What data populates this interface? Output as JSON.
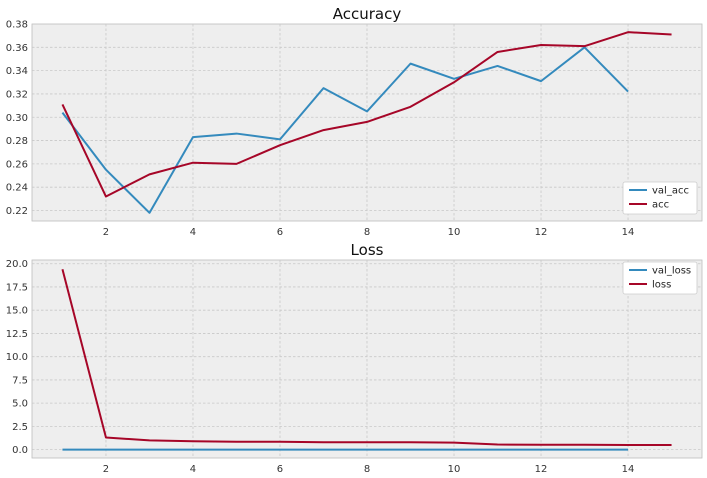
{
  "chart_data": [
    {
      "type": "line",
      "title": "Accuracy",
      "xlabel": "",
      "ylabel": "",
      "xlim": [
        0.3,
        15.7
      ],
      "ylim": [
        0.211,
        0.38
      ],
      "xticks": [
        2,
        4,
        6,
        8,
        10,
        12,
        14
      ],
      "xtick_labels": [
        "2",
        "4",
        "6",
        "8",
        "10",
        "12",
        "14"
      ],
      "yticks": [
        0.22,
        0.24,
        0.26,
        0.28,
        0.3,
        0.32,
        0.34,
        0.36,
        0.38
      ],
      "ytick_labels": [
        "0.22",
        "0.24",
        "0.26",
        "0.28",
        "0.30",
        "0.32",
        "0.34",
        "0.36",
        "0.38"
      ],
      "grid": true,
      "legend_position": "lower-right",
      "series": [
        {
          "name": "val_acc",
          "color": "#348ABD",
          "x": [
            1,
            2,
            3,
            4,
            5,
            6,
            7,
            8,
            9,
            10,
            11,
            12,
            13,
            14
          ],
          "values": [
            0.304,
            0.255,
            0.218,
            0.283,
            0.286,
            0.281,
            0.325,
            0.305,
            0.346,
            0.333,
            0.344,
            0.331,
            0.36,
            0.322
          ]
        },
        {
          "name": "acc",
          "color": "#A60628",
          "x": [
            1,
            2,
            3,
            4,
            5,
            6,
            7,
            8,
            9,
            10,
            11,
            12,
            13,
            14,
            15
          ],
          "values": [
            0.311,
            0.232,
            0.251,
            0.261,
            0.26,
            0.276,
            0.289,
            0.296,
            0.309,
            0.33,
            0.356,
            0.362,
            0.361,
            0.373,
            0.371
          ]
        }
      ]
    },
    {
      "type": "line",
      "title": "Loss",
      "xlabel": "",
      "ylabel": "",
      "xlim": [
        0.3,
        15.7
      ],
      "ylim": [
        -0.9,
        20.4
      ],
      "xticks": [
        2,
        4,
        6,
        8,
        10,
        12,
        14
      ],
      "xtick_labels": [
        "2",
        "4",
        "6",
        "8",
        "10",
        "12",
        "14"
      ],
      "yticks": [
        0.0,
        2.5,
        5.0,
        7.5,
        10.0,
        12.5,
        15.0,
        17.5,
        20.0
      ],
      "ytick_labels": [
        "0.0",
        "2.5",
        "5.0",
        "7.5",
        "10.0",
        "12.5",
        "15.0",
        "17.5",
        "20.0"
      ],
      "grid": true,
      "legend_position": "upper-right",
      "series": [
        {
          "name": "val_loss",
          "color": "#348ABD",
          "x": [
            1,
            2,
            3,
            4,
            5,
            6,
            7,
            8,
            9,
            10,
            11,
            12,
            13,
            14
          ],
          "values": [
            0.0,
            0.0,
            0.0,
            0.0,
            0.0,
            0.0,
            0.0,
            0.0,
            0.0,
            0.0,
            0.0,
            0.0,
            0.0,
            0.0
          ]
        },
        {
          "name": "loss",
          "color": "#A60628",
          "x": [
            1,
            2,
            3,
            4,
            5,
            6,
            7,
            8,
            9,
            10,
            11,
            12,
            13,
            14,
            15
          ],
          "values": [
            19.4,
            1.3,
            1.0,
            0.9,
            0.85,
            0.85,
            0.8,
            0.8,
            0.8,
            0.75,
            0.55,
            0.52,
            0.52,
            0.5,
            0.5
          ]
        }
      ]
    }
  ]
}
